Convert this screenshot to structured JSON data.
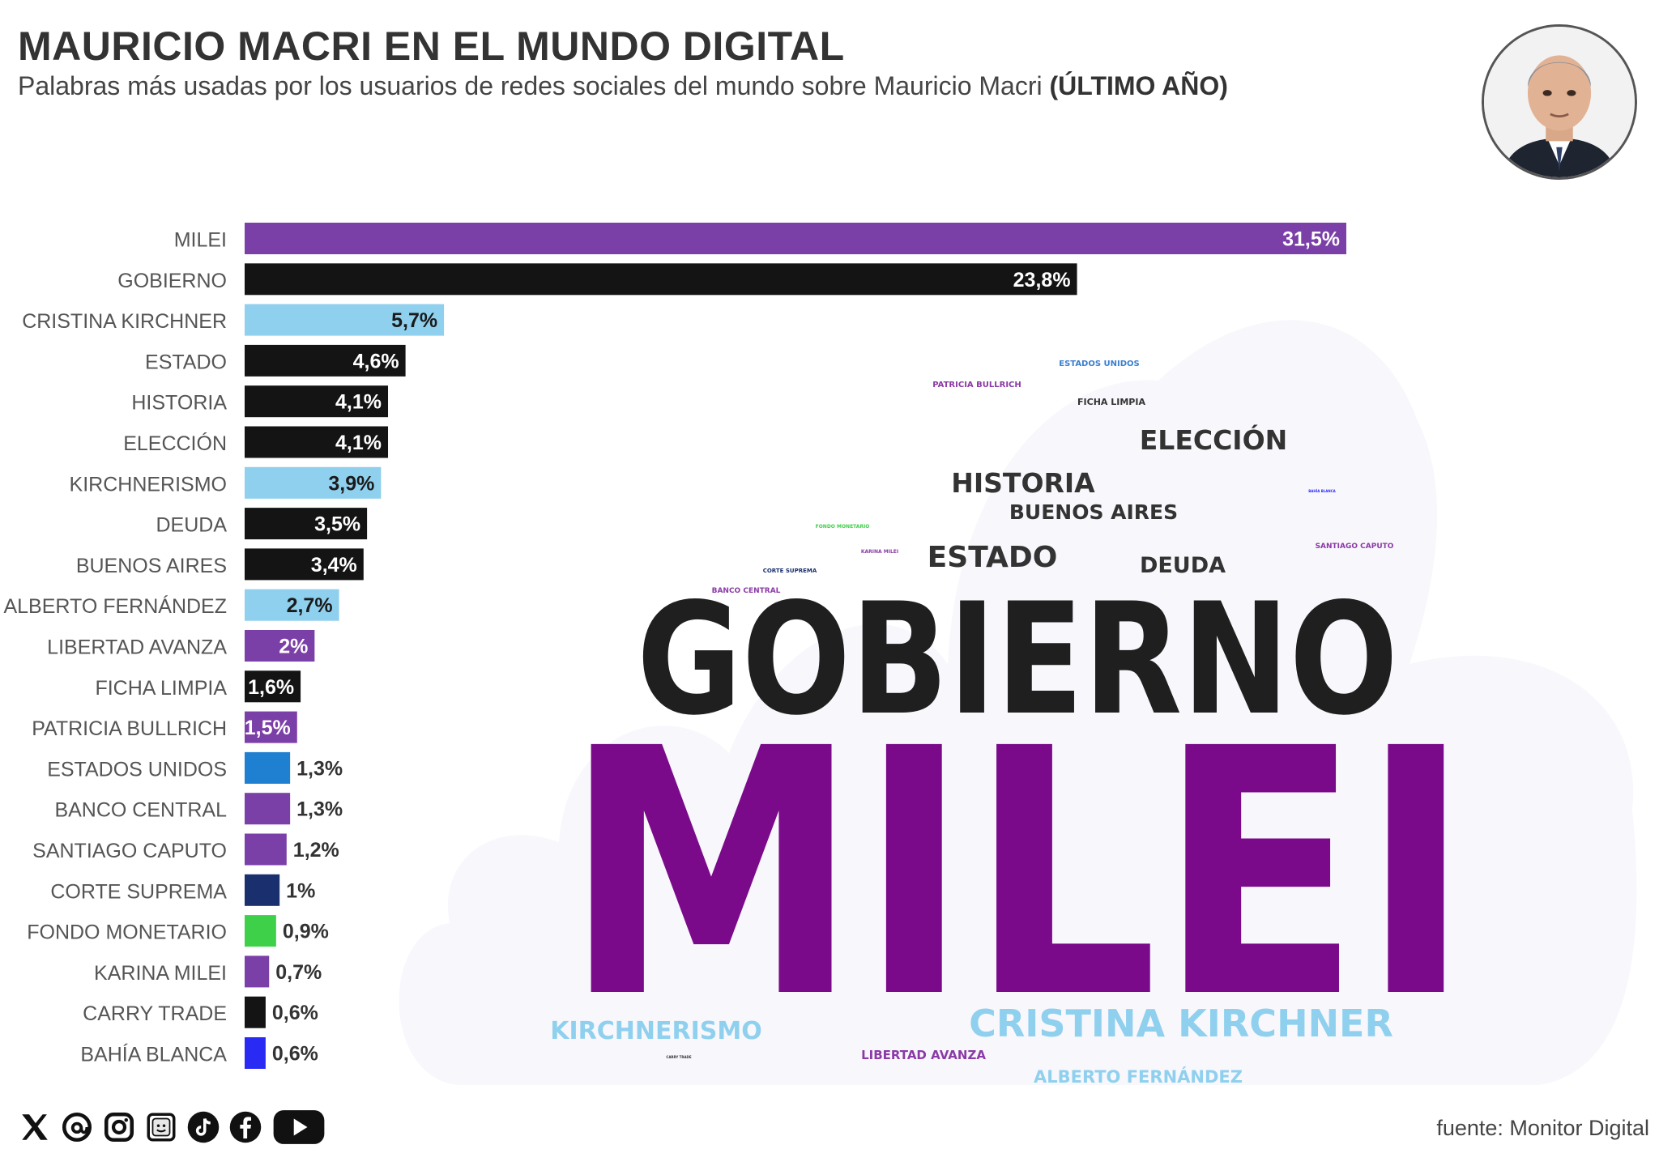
{
  "header": {
    "title": "MAURICIO MACRI EN EL MUNDO DIGITAL",
    "subtitle": "Palabras más usadas por los usuarios de redes sociales del mundo sobre Mauricio Macri",
    "subtitle_bold": "(ÚLTIMO AÑO)"
  },
  "portrait": {
    "icon": "portrait-photo"
  },
  "chart_data": {
    "type": "bar",
    "orientation": "horizontal",
    "value_format": "percent_comma",
    "xlim": [
      0,
      31.5
    ],
    "grid": false,
    "categories": [
      "MILEI",
      "GOBIERNO",
      "CRISTINA KIRCHNER",
      "ESTADO",
      "HISTORIA",
      "ELECCIÓN",
      "KIRCHNERISMO",
      "DEUDA",
      "BUENOS AIRES",
      "ALBERTO FERNÁNDEZ",
      "LIBERTAD AVANZA",
      "FICHA LIMPIA",
      "PATRICIA BULLRICH",
      "ESTADOS UNIDOS",
      "BANCO CENTRAL",
      "SANTIAGO CAPUTO",
      "CORTE SUPREMA",
      "FONDO MONETARIO",
      "KARINA MILEI",
      "CARRY TRADE",
      "BAHÍA BLANCA"
    ],
    "values": [
      31.5,
      23.8,
      5.7,
      4.6,
      4.1,
      4.1,
      3.9,
      3.5,
      3.4,
      2.7,
      2,
      1.6,
      1.5,
      1.3,
      1.3,
      1.2,
      1,
      0.9,
      0.7,
      0.6,
      0.6
    ],
    "labels": [
      "31,5%",
      "23,8%",
      "5,7%",
      "4,6%",
      "4,1%",
      "4,1%",
      "3,9%",
      "3,5%",
      "3,4%",
      "2,7%",
      "2%",
      "1,6%",
      "1,5%",
      "1,3%",
      "1,3%",
      "1,2%",
      "1%",
      "0,9%",
      "0,7%",
      "0,6%",
      "0,6%"
    ],
    "colors": [
      "#7b3fa8",
      "#141414",
      "#8fd0ee",
      "#141414",
      "#141414",
      "#141414",
      "#8fd0ee",
      "#141414",
      "#141414",
      "#8fd0ee",
      "#7b3fa8",
      "#141414",
      "#7b3fa8",
      "#1f7fd0",
      "#7b3fa8",
      "#7b3fa8",
      "#1a2f6e",
      "#3fd04a",
      "#7b3fa8",
      "#141414",
      "#2a2af5"
    ]
  },
  "word_cloud": {
    "words": [
      {
        "text": "MILEI",
        "color": "#7a0a8a"
      },
      {
        "text": "GOBIERNO",
        "color": "#1f1f1f"
      },
      {
        "text": "CRISTINA KIRCHNER",
        "color": "#8fd0ee"
      },
      {
        "text": "KIRCHNERISMO",
        "color": "#8fd0ee"
      },
      {
        "text": "ALBERTO FERNÁNDEZ",
        "color": "#8fd0ee"
      },
      {
        "text": "LIBERTAD AVANZA",
        "color": "#8b3aa6"
      },
      {
        "text": "ESTADO",
        "color": "#333333"
      },
      {
        "text": "HISTORIA",
        "color": "#333333"
      },
      {
        "text": "ELECCIÓN",
        "color": "#333333"
      },
      {
        "text": "DEUDA",
        "color": "#333333"
      },
      {
        "text": "BUENOS AIRES",
        "color": "#333333"
      },
      {
        "text": "PATRICIA BULLRICH",
        "color": "#8b3aa6"
      },
      {
        "text": "ESTADOS UNIDOS",
        "color": "#3a7fd0"
      },
      {
        "text": "FICHA LIMPIA",
        "color": "#333333"
      },
      {
        "text": "SANTIAGO CAPUTO",
        "color": "#8b3aa6"
      },
      {
        "text": "BANCO CENTRAL",
        "color": "#8b3aa6"
      },
      {
        "text": "CORTE SUPREMA",
        "color": "#1a2f6e"
      },
      {
        "text": "FONDO MONETARIO",
        "color": "#3fd04a"
      },
      {
        "text": "KARINA MILEI",
        "color": "#8b3aa6"
      },
      {
        "text": "BAHÍA BLANCA",
        "color": "#2a2af5"
      },
      {
        "text": "CARRY TRADE",
        "color": "#333333"
      }
    ]
  },
  "footer": {
    "social_icons": [
      "x-icon",
      "threads-icon",
      "instagram-icon",
      "substack-icon",
      "tiktok-icon",
      "facebook-icon",
      "youtube-icon"
    ],
    "source": "fuente: Monitor Digital"
  }
}
